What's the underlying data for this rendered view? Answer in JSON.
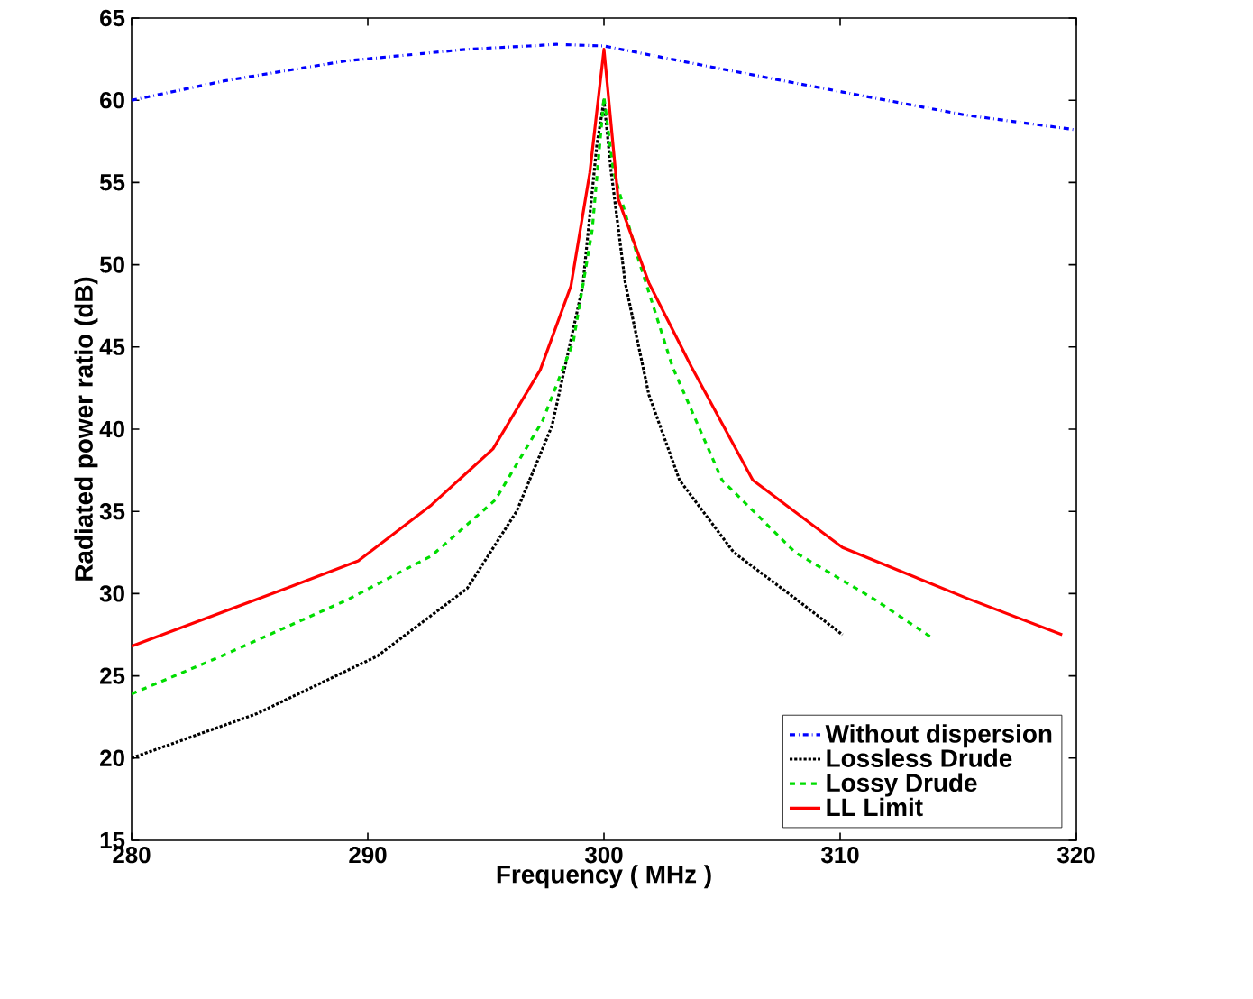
{
  "chart_data": {
    "type": "line",
    "xlabel": "Frequency ( MHz )",
    "ylabel": "Radiated power ratio (dB)",
    "xlim": [
      280,
      320
    ],
    "ylim": [
      15,
      65
    ],
    "xticks": [
      280,
      290,
      300,
      310,
      320
    ],
    "yticks": [
      15,
      20,
      25,
      30,
      35,
      40,
      45,
      50,
      55,
      60,
      65
    ],
    "grid": false,
    "legend": "bottom right",
    "marker": "none",
    "series": [
      {
        "name": "Without dispersion",
        "color": "#0000ff",
        "line_style": "dashdot",
        "x": [
          280,
          284,
          289.1,
          294.2,
          296.8,
          298,
          300,
          305,
          310.1,
          315.3,
          320
        ],
        "values": [
          60.0,
          61.2,
          62.4,
          63.1,
          63.3,
          63.4,
          63.3,
          61.9,
          60.5,
          59.1,
          58.2
        ]
      },
      {
        "name": "Lossless Drude",
        "color": "#000000",
        "line_style": "dotted",
        "x": [
          280,
          285.3,
          290.4,
          294.2,
          296.3,
          297.8,
          299.1,
          299.7,
          300,
          300.3,
          300.9,
          301.9,
          303.2,
          305.5,
          308.1,
          310.1
        ],
        "values": [
          20.0,
          22.7,
          26.2,
          30.3,
          35.0,
          40.2,
          48.7,
          57.3,
          60.0,
          55.7,
          48.9,
          42.1,
          36.9,
          32.5,
          29.7,
          27.5
        ]
      },
      {
        "name": "Lossy Drude",
        "color": "#00dd00",
        "line_style": "dashed",
        "x": [
          280,
          283.8,
          289.1,
          292.7,
          295.4,
          297.4,
          298.7,
          299.5,
          300,
          300.4,
          301.4,
          302.9,
          305,
          308.1,
          311.4,
          313.8
        ],
        "values": [
          23.9,
          26.2,
          29.6,
          32.3,
          35.7,
          40.5,
          45.3,
          52.1,
          60.2,
          55.7,
          50.6,
          43.8,
          36.9,
          32.5,
          29.7,
          27.4
        ]
      },
      {
        "name": "LL Limit",
        "color": "#ff0000",
        "line_style": "solid",
        "x": [
          280,
          286.5,
          289.6,
          292.7,
          295.3,
          297.3,
          298.6,
          299.4,
          300,
          300.6,
          301.9,
          303.7,
          306.3,
          310.1,
          315.4,
          319.4
        ],
        "values": [
          26.8,
          30.3,
          32.0,
          35.4,
          38.8,
          43.6,
          48.7,
          55.6,
          63.1,
          54.0,
          48.9,
          43.8,
          36.9,
          32.8,
          29.7,
          27.5
        ]
      }
    ]
  }
}
